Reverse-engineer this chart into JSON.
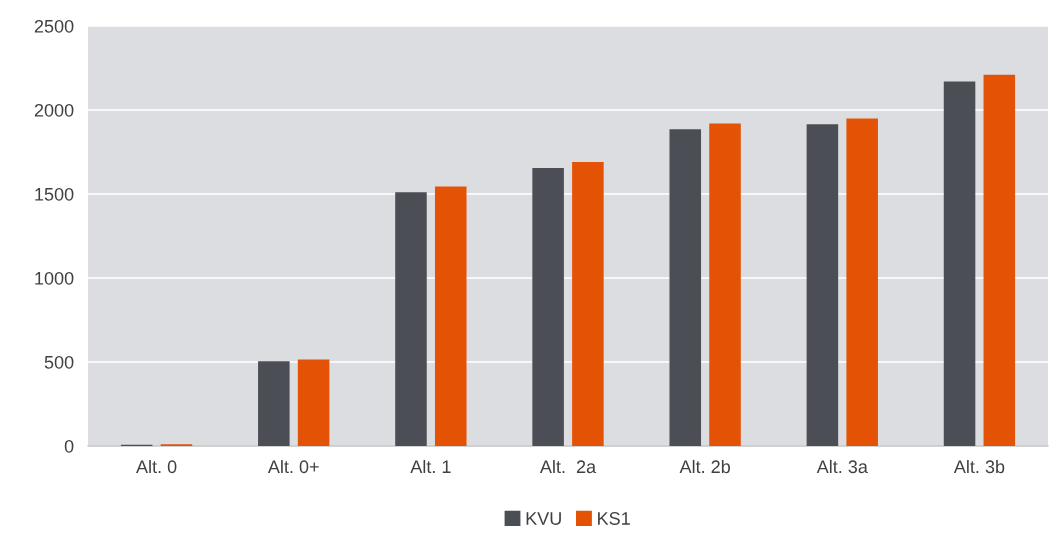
{
  "chart_data": {
    "type": "bar",
    "categories": [
      "Alt. 0",
      "Alt. 0+",
      "Alt. 1",
      "Alt.  2a",
      "Alt. 2b",
      "Alt. 3a",
      "Alt. 3b"
    ],
    "series": [
      {
        "name": "KVU",
        "color": "#4b4e54",
        "values": [
          8,
          505,
          1510,
          1655,
          1885,
          1915,
          2170
        ]
      },
      {
        "name": "KS1",
        "color": "#e35205",
        "values": [
          10,
          515,
          1545,
          1690,
          1920,
          1950,
          2210
        ]
      }
    ],
    "ylim": [
      0,
      2500
    ],
    "yticks": [
      0,
      500,
      1000,
      1500,
      2000,
      2500
    ],
    "grid": "y",
    "legend": "bottom"
  }
}
